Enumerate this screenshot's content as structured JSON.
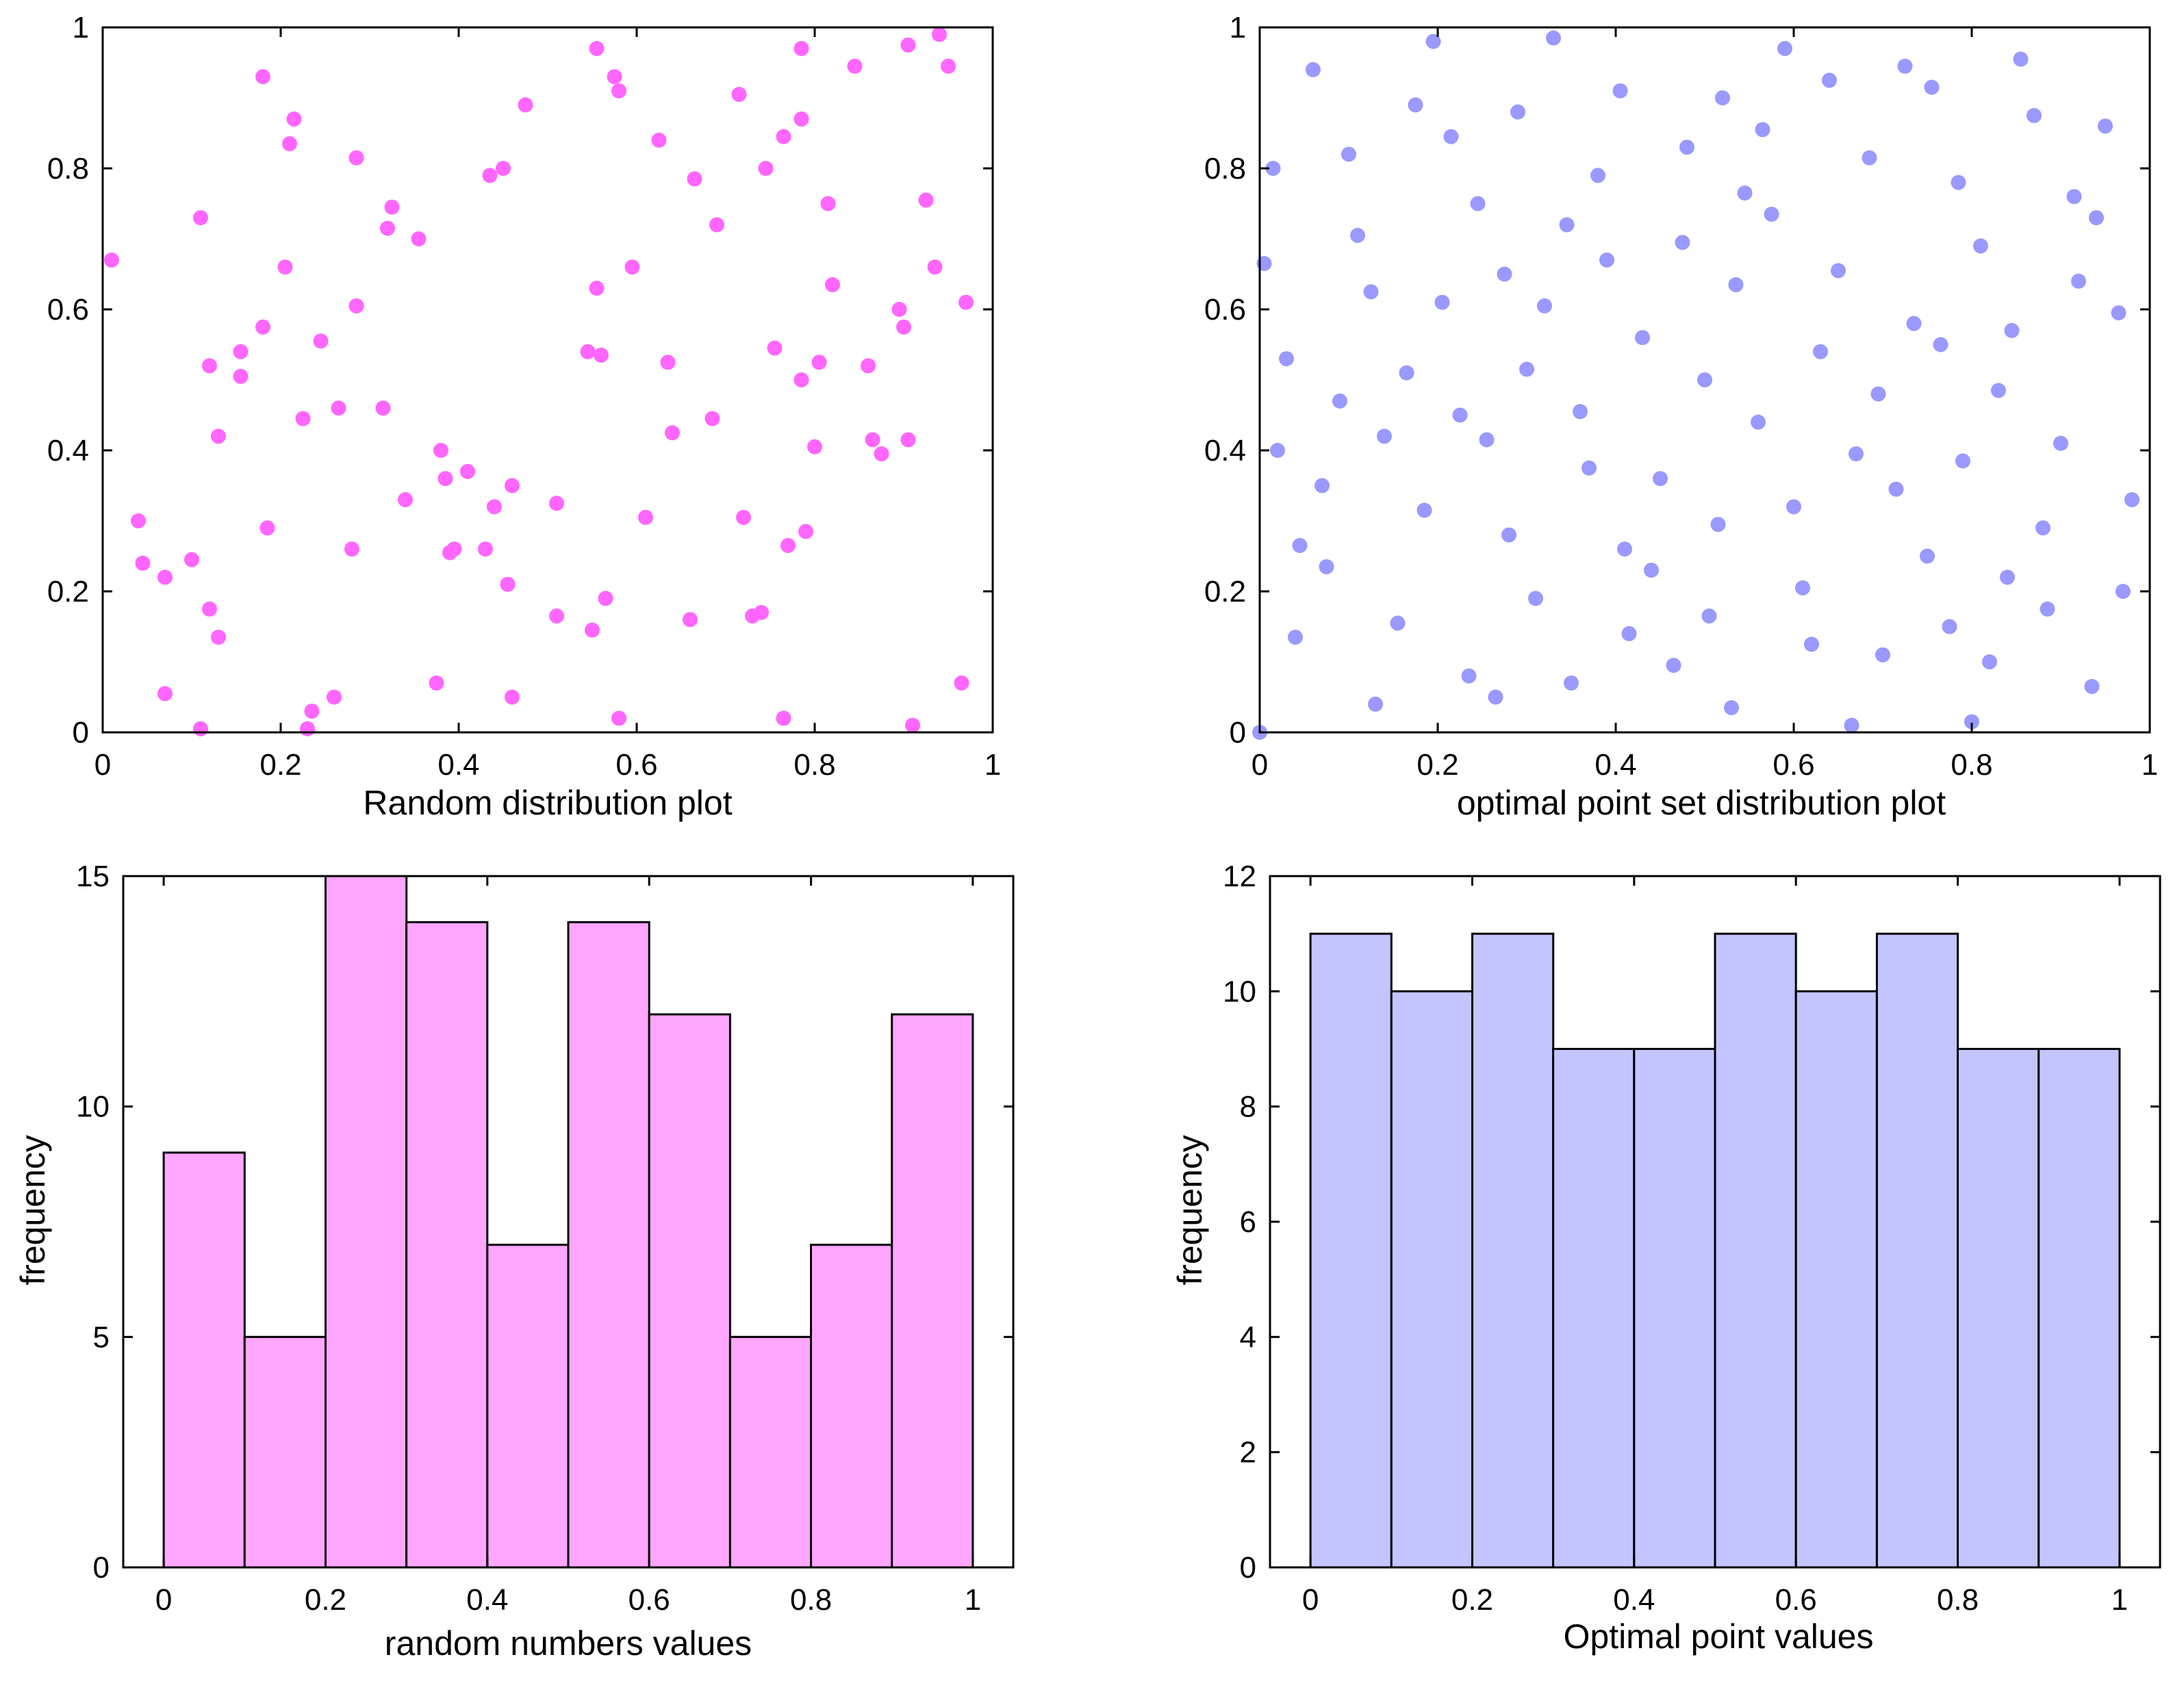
{
  "chart_data": [
    {
      "id": "random-scatter",
      "type": "scatter",
      "title": "",
      "xlabel": "Random distribution plot",
      "ylabel": "",
      "xlim": [
        0,
        1
      ],
      "ylim": [
        0,
        1
      ],
      "xticks": [
        "0",
        "0.2",
        "0.4",
        "0.6",
        "0.8",
        "1"
      ],
      "yticks": [
        "0",
        "0.2",
        "0.4",
        "0.6",
        "0.8",
        "1"
      ],
      "color": "#ff66ff",
      "points": [
        [
          0.01,
          0.67
        ],
        [
          0.04,
          0.3
        ],
        [
          0.045,
          0.24
        ],
        [
          0.07,
          0.22
        ],
        [
          0.07,
          0.055
        ],
        [
          0.1,
          0.245
        ],
        [
          0.11,
          0.73
        ],
        [
          0.11,
          0.005
        ],
        [
          0.12,
          0.175
        ],
        [
          0.12,
          0.52
        ],
        [
          0.13,
          0.135
        ],
        [
          0.13,
          0.42
        ],
        [
          0.155,
          0.54
        ],
        [
          0.155,
          0.505
        ],
        [
          0.18,
          0.575
        ],
        [
          0.18,
          0.93
        ],
        [
          0.185,
          0.29
        ],
        [
          0.205,
          0.66
        ],
        [
          0.21,
          0.835
        ],
        [
          0.215,
          0.87
        ],
        [
          0.225,
          0.445
        ],
        [
          0.23,
          0.005
        ],
        [
          0.235,
          0.03
        ],
        [
          0.245,
          0.555
        ],
        [
          0.26,
          0.05
        ],
        [
          0.265,
          0.46
        ],
        [
          0.28,
          0.26
        ],
        [
          0.285,
          0.815
        ],
        [
          0.285,
          0.605
        ],
        [
          0.315,
          0.46
        ],
        [
          0.32,
          0.715
        ],
        [
          0.325,
          0.745
        ],
        [
          0.34,
          0.33
        ],
        [
          0.355,
          0.7
        ],
        [
          0.375,
          0.07
        ],
        [
          0.38,
          0.4
        ],
        [
          0.385,
          0.36
        ],
        [
          0.39,
          0.255
        ],
        [
          0.395,
          0.26
        ],
        [
          0.41,
          0.37
        ],
        [
          0.43,
          0.26
        ],
        [
          0.435,
          0.79
        ],
        [
          0.44,
          0.32
        ],
        [
          0.45,
          0.8
        ],
        [
          0.455,
          0.21
        ],
        [
          0.46,
          0.05
        ],
        [
          0.46,
          0.35
        ],
        [
          0.475,
          0.89
        ],
        [
          0.51,
          0.165
        ],
        [
          0.51,
          0.325
        ],
        [
          0.545,
          0.54
        ],
        [
          0.55,
          0.145
        ],
        [
          0.555,
          0.63
        ],
        [
          0.555,
          0.97
        ],
        [
          0.56,
          0.535
        ],
        [
          0.565,
          0.19
        ],
        [
          0.575,
          0.93
        ],
        [
          0.58,
          0.91
        ],
        [
          0.58,
          0.02
        ],
        [
          0.595,
          0.66
        ],
        [
          0.61,
          0.305
        ],
        [
          0.625,
          0.84
        ],
        [
          0.635,
          0.525
        ],
        [
          0.64,
          0.425
        ],
        [
          0.66,
          0.16
        ],
        [
          0.665,
          0.785
        ],
        [
          0.685,
          0.445
        ],
        [
          0.69,
          0.72
        ],
        [
          0.715,
          0.905
        ],
        [
          0.72,
          0.305
        ],
        [
          0.73,
          0.165
        ],
        [
          0.74,
          0.17
        ],
        [
          0.745,
          0.8
        ],
        [
          0.755,
          0.545
        ],
        [
          0.765,
          0.845
        ],
        [
          0.765,
          0.02
        ],
        [
          0.77,
          0.265
        ],
        [
          0.785,
          0.87
        ],
        [
          0.785,
          0.97
        ],
        [
          0.785,
          0.5
        ],
        [
          0.79,
          0.285
        ],
        [
          0.8,
          0.405
        ],
        [
          0.805,
          0.525
        ],
        [
          0.815,
          0.75
        ],
        [
          0.82,
          0.635
        ],
        [
          0.845,
          0.945
        ],
        [
          0.86,
          0.52
        ],
        [
          0.865,
          0.415
        ],
        [
          0.875,
          0.395
        ],
        [
          0.895,
          0.6
        ],
        [
          0.9,
          0.575
        ],
        [
          0.905,
          0.415
        ],
        [
          0.905,
          0.975
        ],
        [
          0.91,
          0.01
        ],
        [
          0.925,
          0.755
        ],
        [
          0.935,
          0.66
        ],
        [
          0.94,
          0.99
        ],
        [
          0.95,
          0.945
        ],
        [
          0.965,
          0.07
        ],
        [
          0.97,
          0.61
        ]
      ]
    },
    {
      "id": "optimal-scatter",
      "type": "scatter",
      "title": "",
      "xlabel": "optimal point set distribution plot",
      "ylabel": "",
      "xlim": [
        0,
        1
      ],
      "ylim": [
        0,
        1
      ],
      "xticks": [
        "0",
        "0.2",
        "0.4",
        "0.6",
        "0.8",
        "1"
      ],
      "yticks": [
        "0",
        "0.2",
        "0.4",
        "0.6",
        "0.8",
        "1"
      ],
      "color": "#9999ff",
      "points": [
        [
          0.0,
          0.0
        ],
        [
          0.005,
          0.665
        ],
        [
          0.015,
          0.8
        ],
        [
          0.02,
          0.4
        ],
        [
          0.03,
          0.53
        ],
        [
          0.04,
          0.135
        ],
        [
          0.045,
          0.265
        ],
        [
          0.06,
          0.94
        ],
        [
          0.07,
          0.35
        ],
        [
          0.075,
          0.235
        ],
        [
          0.09,
          0.47
        ],
        [
          0.1,
          0.82
        ],
        [
          0.11,
          0.705
        ],
        [
          0.125,
          0.625
        ],
        [
          0.13,
          0.04
        ],
        [
          0.14,
          0.42
        ],
        [
          0.155,
          0.155
        ],
        [
          0.165,
          0.51
        ],
        [
          0.175,
          0.89
        ],
        [
          0.185,
          0.315
        ],
        [
          0.195,
          0.98
        ],
        [
          0.205,
          0.61
        ],
        [
          0.215,
          0.845
        ],
        [
          0.225,
          0.45
        ],
        [
          0.235,
          0.08
        ],
        [
          0.245,
          0.75
        ],
        [
          0.255,
          0.415
        ],
        [
          0.265,
          0.05
        ],
        [
          0.275,
          0.65
        ],
        [
          0.28,
          0.28
        ],
        [
          0.29,
          0.88
        ],
        [
          0.3,
          0.515
        ],
        [
          0.31,
          0.19
        ],
        [
          0.32,
          0.605
        ],
        [
          0.33,
          0.985
        ],
        [
          0.345,
          0.72
        ],
        [
          0.35,
          0.07
        ],
        [
          0.36,
          0.455
        ],
        [
          0.37,
          0.375
        ],
        [
          0.38,
          0.79
        ],
        [
          0.39,
          0.67
        ],
        [
          0.405,
          0.91
        ],
        [
          0.41,
          0.26
        ],
        [
          0.415,
          0.14
        ],
        [
          0.43,
          0.56
        ],
        [
          0.44,
          0.23
        ],
        [
          0.45,
          0.36
        ],
        [
          0.465,
          0.095
        ],
        [
          0.475,
          0.695
        ],
        [
          0.48,
          0.83
        ],
        [
          0.5,
          0.5
        ],
        [
          0.505,
          0.165
        ],
        [
          0.515,
          0.295
        ],
        [
          0.52,
          0.9
        ],
        [
          0.53,
          0.035
        ],
        [
          0.535,
          0.635
        ],
        [
          0.545,
          0.765
        ],
        [
          0.56,
          0.44
        ],
        [
          0.565,
          0.855
        ],
        [
          0.575,
          0.735
        ],
        [
          0.59,
          0.97
        ],
        [
          0.6,
          0.32
        ],
        [
          0.61,
          0.205
        ],
        [
          0.62,
          0.125
        ],
        [
          0.63,
          0.54
        ],
        [
          0.64,
          0.925
        ],
        [
          0.65,
          0.655
        ],
        [
          0.665,
          0.01
        ],
        [
          0.67,
          0.395
        ],
        [
          0.685,
          0.815
        ],
        [
          0.695,
          0.48
        ],
        [
          0.7,
          0.11
        ],
        [
          0.715,
          0.345
        ],
        [
          0.725,
          0.945
        ],
        [
          0.735,
          0.58
        ],
        [
          0.75,
          0.25
        ],
        [
          0.755,
          0.915
        ],
        [
          0.765,
          0.55
        ],
        [
          0.775,
          0.15
        ],
        [
          0.785,
          0.78
        ],
        [
          0.79,
          0.385
        ],
        [
          0.8,
          0.015
        ],
        [
          0.81,
          0.69
        ],
        [
          0.82,
          0.1
        ],
        [
          0.83,
          0.485
        ],
        [
          0.84,
          0.22
        ],
        [
          0.845,
          0.57
        ],
        [
          0.855,
          0.955
        ],
        [
          0.87,
          0.875
        ],
        [
          0.88,
          0.29
        ],
        [
          0.885,
          0.175
        ],
        [
          0.9,
          0.41
        ],
        [
          0.915,
          0.76
        ],
        [
          0.92,
          0.64
        ],
        [
          0.935,
          0.065
        ],
        [
          0.94,
          0.73
        ],
        [
          0.95,
          0.86
        ],
        [
          0.965,
          0.595
        ],
        [
          0.97,
          0.2
        ],
        [
          0.98,
          0.33
        ]
      ]
    },
    {
      "id": "random-hist",
      "type": "bar",
      "title": "",
      "xlabel": "random numbers values",
      "ylabel": "frequency",
      "xlim": [
        -0.05,
        1.05
      ],
      "ylim": [
        0,
        15
      ],
      "bin_edges": [
        0,
        0.1,
        0.2,
        0.3,
        0.4,
        0.5,
        0.6,
        0.7,
        0.8,
        0.9,
        1.0
      ],
      "values": [
        9,
        5,
        15,
        14,
        7,
        14,
        12,
        5,
        7,
        12
      ],
      "xtick_values": [
        0,
        0.2,
        0.4,
        0.6,
        0.8,
        1
      ],
      "xticks": [
        "0",
        "0.2",
        "0.4",
        "0.6",
        "0.8",
        "1"
      ],
      "ytick_values": [
        0,
        5,
        10,
        15
      ],
      "yticks": [
        "0",
        "5",
        "10",
        "15"
      ],
      "color": "#ffa6ff"
    },
    {
      "id": "optimal-hist",
      "type": "bar",
      "title": "",
      "xlabel": "Optimal point values",
      "ylabel": "frequency",
      "xlim": [
        -0.05,
        1.05
      ],
      "ylim": [
        0,
        12
      ],
      "bin_edges": [
        0,
        0.1,
        0.2,
        0.3,
        0.4,
        0.5,
        0.6,
        0.7,
        0.8,
        0.9,
        1.0
      ],
      "values": [
        11,
        10,
        11,
        9,
        9,
        11,
        10,
        11,
        9,
        9
      ],
      "xtick_values": [
        0,
        0.2,
        0.4,
        0.6,
        0.8,
        1
      ],
      "xticks": [
        "0",
        "0.2",
        "0.4",
        "0.6",
        "0.8",
        "1"
      ],
      "ytick_values": [
        0,
        2,
        4,
        6,
        8,
        10,
        12
      ],
      "yticks": [
        "0",
        "2",
        "4",
        "6",
        "8",
        "10",
        "12"
      ],
      "color": "#c4c4ff"
    }
  ]
}
